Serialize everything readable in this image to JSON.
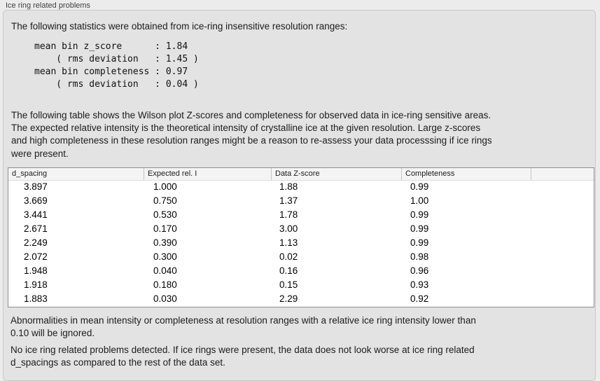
{
  "window": {
    "title": "Ice ring related problems"
  },
  "panel": {
    "intro": "The following statistics were obtained from ice-ring insensitive resolution ranges:",
    "stats_block": "mean bin z_score      : 1.84\n    ( rms deviation   : 1.45 )\nmean bin completeness : 0.97\n    ( rms deviation   : 0.04 )",
    "stats": {
      "mean_bin_z_score": "1.84",
      "z_score_rms_deviation": "1.45",
      "mean_bin_completeness": "0.97",
      "completeness_rms_deviation": "0.04"
    },
    "table_description": "The following table shows the Wilson plot Z-scores and completeness for observed data in ice-ring sensitive areas.\nThe expected relative intensity is the theoretical intensity of crystalline ice at the given resolution. Large z-scores\nand high completeness in these resolution ranges might be a reason to re-assess your data processsing if ice rings\nwere present.",
    "table": {
      "columns": [
        "d_spacing",
        "Expected rel. I",
        "Data Z-score",
        "Completeness",
        ""
      ],
      "rows": [
        [
          "3.897",
          "1.000",
          "1.88",
          "0.99"
        ],
        [
          "3.669",
          "0.750",
          "1.37",
          "1.00"
        ],
        [
          "3.441",
          "0.530",
          "1.78",
          "0.99"
        ],
        [
          "2.671",
          "0.170",
          "3.00",
          "0.99"
        ],
        [
          "2.249",
          "0.390",
          "1.13",
          "0.99"
        ],
        [
          "2.072",
          "0.300",
          "0.02",
          "0.98"
        ],
        [
          "1.948",
          "0.040",
          "0.16",
          "0.96"
        ],
        [
          "1.918",
          "0.180",
          "0.15",
          "0.93"
        ],
        [
          "1.883",
          "0.030",
          "2.29",
          "0.92"
        ]
      ]
    },
    "note": "Abnormalities in mean intensity or completeness at resolution ranges with a relative ice ring intensity lower than\n0.10 will be ignored.",
    "conclusion": "No ice ring related problems detected. If ice rings were present, the data does not look worse at ice ring related\nd_spacings as compared to the rest of the data set."
  },
  "colors": {
    "page_background": "#ececec",
    "panel_background": "#e3e3e3",
    "panel_border": "#c9c9c9",
    "table_border": "#8f8f8f",
    "table_header_background": "#f4f4f4",
    "text": "#1c1c1c"
  }
}
